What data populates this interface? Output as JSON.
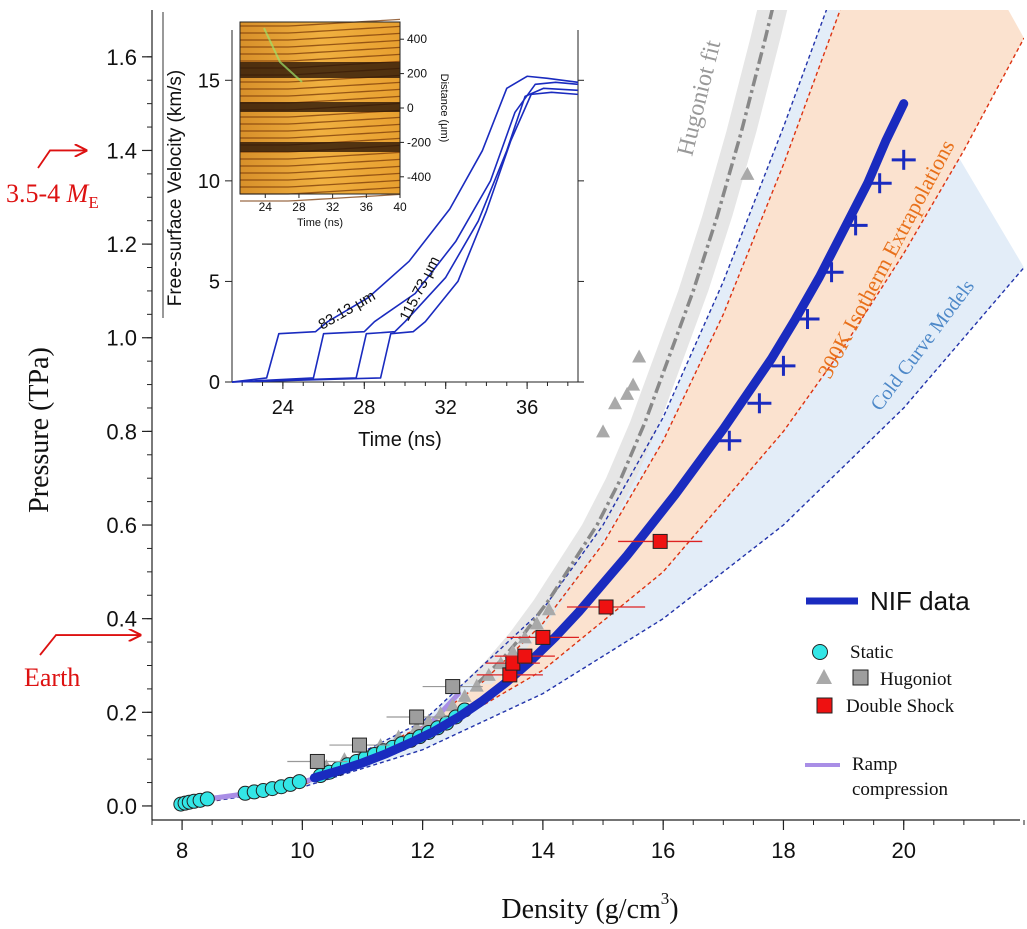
{
  "chart_data": {
    "type": "scatter",
    "xlabel": "Density (g/cm",
    "xlabel_sup": "3",
    "xlabel_close": ")",
    "ylabel": "Pressure (TPa)",
    "xlim": [
      7.5,
      22
    ],
    "ylim": [
      -0.03,
      1.7
    ],
    "xticks": [
      8,
      10,
      12,
      14,
      16,
      18,
      20
    ],
    "yticks": [
      0.0,
      0.2,
      0.4,
      0.6,
      0.8,
      1.0,
      1.2,
      1.4,
      1.6
    ],
    "xtick_labels": [
      "8",
      "10",
      "12",
      "14",
      "16",
      "18",
      "20"
    ],
    "ytick_labels": [
      "0.0",
      "0.2",
      "0.4",
      "0.6",
      "0.8",
      "1.0",
      "1.2",
      "1.4",
      "1.6"
    ],
    "colors": {
      "nif": "#1a2bbf",
      "static": "#33e6e6",
      "hugoniot_tri": "#a9a9a9",
      "hugoniot_sq": "#9e9e9e",
      "double_shock": "#ee1111",
      "ramp": "#a98ee6",
      "extrap_band": "#fbe2cf",
      "cold_band": "#e3edf8",
      "hug_band": "#e6e6e6",
      "annot_red": "#dd1111",
      "orange": "#e8701a",
      "blue_text": "#4d88c8"
    },
    "annotations": {
      "hugoniot_fit": "Hugoniot fit",
      "isotherm": "300K Isotherm Extrapolations",
      "cold_curve": "Cold Curve Models",
      "super_earth_a": "3.5-4 ",
      "super_earth_m": "M",
      "super_earth_sub": "E",
      "earth": "Earth",
      "super_earth_pressure": 1.4,
      "earth_pressure": 0.365
    },
    "legend": {
      "position": "lower-right",
      "nif": "NIF data",
      "static": "Static",
      "hugoniot": "Hugoniot",
      "double_shock": "Double Shock",
      "ramp_1": "Ramp",
      "ramp_2": "compression"
    },
    "series": {
      "nif_curve": {
        "name": "NIF data",
        "x": [
          10.2,
          10.6,
          11.0,
          11.4,
          11.8,
          12.2,
          12.6,
          13.0,
          13.4,
          13.8,
          14.2,
          14.6,
          15.0,
          15.4,
          15.8,
          16.2,
          16.6,
          17.0,
          17.4,
          17.8,
          18.2,
          18.6,
          19.0,
          19.4,
          19.7,
          20.0
        ],
        "y": [
          0.06,
          0.075,
          0.092,
          0.112,
          0.135,
          0.16,
          0.19,
          0.225,
          0.265,
          0.31,
          0.36,
          0.415,
          0.475,
          0.535,
          0.6,
          0.665,
          0.735,
          0.805,
          0.88,
          0.955,
          1.04,
          1.13,
          1.23,
          1.33,
          1.42,
          1.5
        ]
      },
      "nif_markers": {
        "x": [
          17.1,
          17.6,
          18.0,
          18.4,
          18.8,
          19.2,
          19.6,
          20.0
        ],
        "y": [
          0.78,
          0.86,
          0.94,
          1.04,
          1.14,
          1.24,
          1.33,
          1.38
        ]
      },
      "static": {
        "name": "Static",
        "x": [
          7.98,
          8.05,
          8.12,
          8.2,
          8.3,
          8.42,
          9.05,
          9.2,
          9.35,
          9.5,
          9.65,
          9.8,
          9.95,
          10.3,
          10.45,
          10.6,
          10.75,
          10.9,
          11.05,
          11.2,
          11.35,
          11.5,
          11.65,
          11.8,
          11.95,
          12.1,
          12.25,
          12.4,
          12.55,
          12.7
        ],
        "y": [
          0.004,
          0.006,
          0.008,
          0.01,
          0.012,
          0.015,
          0.027,
          0.03,
          0.033,
          0.037,
          0.041,
          0.046,
          0.052,
          0.065,
          0.072,
          0.08,
          0.088,
          0.095,
          0.103,
          0.11,
          0.118,
          0.125,
          0.133,
          0.14,
          0.148,
          0.157,
          0.167,
          0.177,
          0.19,
          0.205
        ]
      },
      "hugoniot_triangles": {
        "name": "Hugoniot",
        "x": [
          10.4,
          10.7,
          11.0,
          11.3,
          11.6,
          11.9,
          12.1,
          12.3,
          12.5,
          12.7,
          12.9,
          13.1,
          13.3,
          13.5,
          13.7,
          13.9,
          14.1,
          15.0,
          15.2,
          15.4,
          15.5,
          15.6,
          17.4
        ],
        "y": [
          0.085,
          0.1,
          0.115,
          0.13,
          0.148,
          0.168,
          0.182,
          0.198,
          0.215,
          0.235,
          0.257,
          0.28,
          0.305,
          0.33,
          0.36,
          0.39,
          0.42,
          0.8,
          0.86,
          0.88,
          0.9,
          0.96,
          1.35
        ]
      },
      "hugoniot_squares": {
        "name": "Hugoniot",
        "x": [
          10.25,
          10.95,
          11.9,
          12.5
        ],
        "y": [
          0.095,
          0.13,
          0.19,
          0.255
        ],
        "xerr": [
          0.5,
          0.5,
          0.5,
          0.5
        ]
      },
      "double_shock": {
        "name": "Double Shock",
        "x": [
          13.45,
          13.5,
          13.7,
          14.0,
          15.05,
          15.95
        ],
        "y": [
          0.28,
          0.305,
          0.32,
          0.36,
          0.425,
          0.565
        ],
        "xerr": [
          0.55,
          0.45,
          0.5,
          0.6,
          0.65,
          0.7
        ]
      },
      "ramp_compression": {
        "name": "Ramp compression",
        "x": [
          8.2,
          8.6,
          9.0,
          9.4,
          9.8,
          10.2,
          10.6,
          11.0,
          11.4,
          11.8,
          12.2,
          12.6
        ],
        "y": [
          0.012,
          0.018,
          0.025,
          0.034,
          0.045,
          0.058,
          0.073,
          0.092,
          0.115,
          0.145,
          0.185,
          0.24
        ]
      },
      "hugoniot_fit": {
        "name": "Hugoniot fit",
        "x": [
          12.9,
          13.3,
          13.7,
          14.1,
          14.5,
          14.9,
          15.3,
          15.7,
          16.1,
          16.5,
          16.9,
          17.3,
          17.7,
          18.0
        ],
        "y": [
          0.26,
          0.31,
          0.37,
          0.44,
          0.52,
          0.6,
          0.7,
          0.82,
          0.96,
          1.1,
          1.26,
          1.44,
          1.64,
          1.8
        ]
      },
      "isotherm_upper": {
        "x": [
          8.0,
          10.0,
          12.0,
          13.0,
          14.0,
          15.0,
          16.0,
          17.0,
          18.0,
          19.0,
          20.0
        ],
        "y": [
          0.0,
          0.05,
          0.17,
          0.265,
          0.39,
          0.56,
          0.78,
          1.05,
          1.37,
          1.72,
          2.1
        ]
      },
      "isotherm_lower": {
        "x": [
          8.0,
          10.0,
          12.0,
          14.0,
          16.0,
          18.0,
          19.0,
          20.0,
          21.0,
          22.0
        ],
        "y": [
          0.0,
          0.045,
          0.14,
          0.29,
          0.5,
          0.8,
          0.98,
          1.18,
          1.4,
          1.64
        ]
      },
      "cold_upper": {
        "x": [
          8.0,
          10.0,
          12.0,
          14.0,
          15.0,
          16.0,
          17.0,
          18.0,
          19.0
        ],
        "y": [
          0.0,
          0.05,
          0.18,
          0.42,
          0.6,
          0.83,
          1.12,
          1.45,
          1.8
        ]
      },
      "cold_lower": {
        "x": [
          8.0,
          10.0,
          12.0,
          14.0,
          16.0,
          18.0,
          20.0,
          22.0
        ],
        "y": [
          0.0,
          0.04,
          0.12,
          0.24,
          0.4,
          0.6,
          0.85,
          1.15
        ]
      }
    },
    "inset": {
      "xlabel": "Time (ns)",
      "ylabel": "Free-surface Velocity (km/s)",
      "xlim": [
        21.5,
        38.5
      ],
      "ylim": [
        0,
        17.5
      ],
      "xticks": [
        24,
        28,
        32,
        36
      ],
      "yticks": [
        0,
        5,
        10,
        15
      ],
      "xtick_labels": [
        "24",
        "28",
        "32",
        "36"
      ],
      "ytick_labels": [
        "0",
        "5",
        "10",
        "15"
      ],
      "step_label_a": "83.13 μm",
      "step_label_b": "115.73 μm",
      "traces": [
        {
          "name": "trace-1",
          "x": [
            21.5,
            23.2,
            23.8,
            25.6,
            26.2,
            28.2,
            30.2,
            32.2,
            33.8,
            35.0,
            36.0,
            37.0,
            38.5
          ],
          "y": [
            0,
            0.2,
            2.4,
            2.5,
            3.0,
            4.2,
            6.0,
            8.6,
            11.5,
            14.6,
            15.2,
            15.1,
            14.9
          ]
        },
        {
          "name": "trace-2",
          "x": [
            21.5,
            25.5,
            26.0,
            28.0,
            28.5,
            30.5,
            32.5,
            34.2,
            35.4,
            36.4,
            37.4,
            38.5
          ],
          "y": [
            0,
            0.2,
            2.4,
            2.5,
            3.0,
            4.4,
            7.0,
            10.0,
            13.4,
            14.8,
            14.9,
            14.8
          ]
        },
        {
          "name": "trace-3",
          "x": [
            21.5,
            27.6,
            28.1,
            29.5,
            30.0,
            32.0,
            33.6,
            35.0,
            35.9,
            36.8,
            38.5
          ],
          "y": [
            0,
            0.2,
            2.4,
            2.5,
            3.0,
            5.2,
            8.0,
            11.5,
            14.2,
            14.6,
            14.5
          ]
        },
        {
          "name": "trace-4",
          "x": [
            21.5,
            28.8,
            29.3,
            30.4,
            31.0,
            32.6,
            34.0,
            35.2,
            36.2,
            37.2,
            38.5
          ],
          "y": [
            0,
            0.2,
            2.4,
            2.5,
            3.0,
            5.0,
            8.5,
            12.0,
            14.3,
            14.4,
            14.3
          ]
        }
      ],
      "streak": {
        "xlabel": "Time (ns)",
        "ylabel": "Distance (μm)",
        "xticks": [
          "24",
          "28",
          "32",
          "36",
          "40"
        ],
        "yticks": [
          "400",
          "200",
          "0",
          "-200",
          "-400"
        ],
        "xlim": [
          21,
          40
        ],
        "ylim": [
          -500,
          500
        ]
      }
    }
  }
}
